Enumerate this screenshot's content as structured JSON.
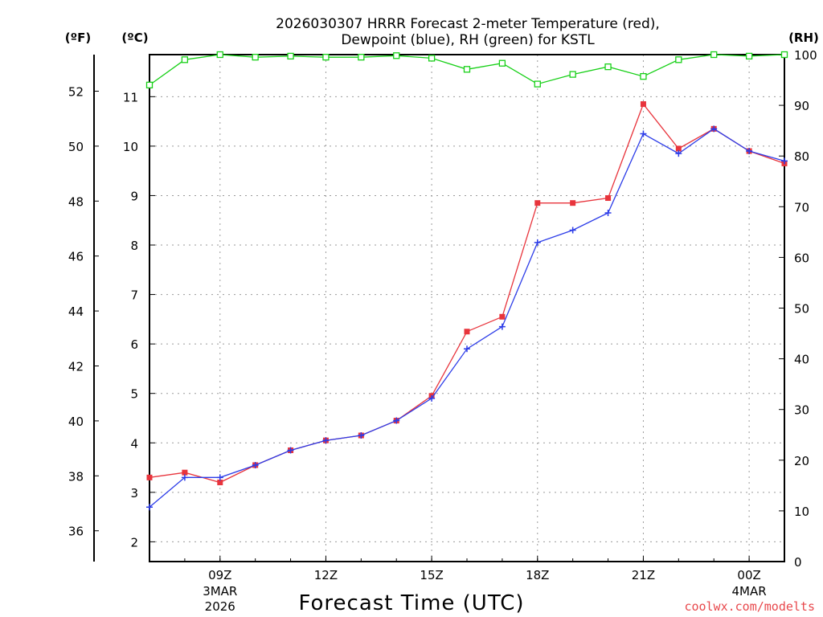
{
  "chart_data": {
    "type": "line",
    "title_line1": "2026030307 HRRR Forecast 2-meter Temperature (red),",
    "title_line2": "Dewpoint (blue), RH (green) for KSTL",
    "xlabel": "Forecast Time (UTC)",
    "credit": "coolwx.com/modelts",
    "units": {
      "fahrenheit": "(ºF)",
      "celsius": "(ºC)",
      "rh": "(RH)"
    },
    "x_hours_utc": [
      7,
      8,
      9,
      10,
      11,
      12,
      13,
      14,
      15,
      16,
      17,
      18,
      19,
      20,
      21,
      22,
      23,
      24,
      25
    ],
    "x_range": [
      7,
      25
    ],
    "x_ticks": [
      {
        "hour": 9,
        "label": "09Z",
        "date": "3MAR",
        "year": "2026"
      },
      {
        "hour": 12,
        "label": "12Z"
      },
      {
        "hour": 15,
        "label": "15Z"
      },
      {
        "hour": 18,
        "label": "18Z"
      },
      {
        "hour": 21,
        "label": "21Z"
      },
      {
        "hour": 24,
        "label": "00Z",
        "date": "4MAR"
      }
    ],
    "celsius_range": [
      1.6,
      11.85
    ],
    "celsius_ticks": [
      "2",
      "3",
      "4",
      "5",
      "6",
      "7",
      "8",
      "9",
      "10",
      "11"
    ],
    "fahrenheit_ticks": [
      "36",
      "38",
      "40",
      "42",
      "44",
      "46",
      "48",
      "50",
      "52"
    ],
    "rh_range": [
      0,
      100
    ],
    "rh_ticks": [
      "0",
      "10",
      "20",
      "30",
      "40",
      "50",
      "60",
      "70",
      "80",
      "90",
      "100"
    ],
    "series": [
      {
        "name": "Temperature",
        "unit": "C",
        "color": "#e8343c",
        "marker": "square-filled",
        "values": [
          3.3,
          3.4,
          3.2,
          3.55,
          3.85,
          4.05,
          4.15,
          4.45,
          4.95,
          6.25,
          6.55,
          8.85,
          8.85,
          8.95,
          10.85,
          9.95,
          10.35,
          9.9,
          9.65
        ]
      },
      {
        "name": "Dewpoint",
        "unit": "C",
        "color": "#2c3ce8",
        "marker": "plus",
        "values": [
          2.7,
          3.3,
          3.3,
          3.55,
          3.85,
          4.05,
          4.15,
          4.45,
          4.9,
          5.9,
          6.35,
          8.05,
          8.3,
          8.65,
          10.25,
          9.85,
          10.35,
          9.9,
          9.7
        ]
      },
      {
        "name": "RH",
        "unit": "%",
        "color": "#18d018",
        "marker": "square-open",
        "values": [
          94,
          99,
          100,
          99.5,
          99.7,
          99.5,
          99.5,
          99.8,
          99.3,
          97.1,
          98.3,
          94.2,
          96.1,
          97.6,
          95.7,
          99,
          100,
          99.7,
          100
        ]
      }
    ]
  }
}
